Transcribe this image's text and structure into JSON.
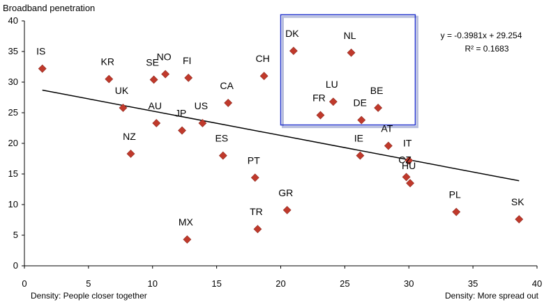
{
  "chart_data": {
    "type": "scatter",
    "ylabel": "Broadband penetration",
    "xlabel_left": "Density: People closer together",
    "xlabel_right": "Density: More spread out",
    "xlim": [
      0,
      40
    ],
    "ylim": [
      0,
      40
    ],
    "x_ticks": [
      0,
      5,
      10,
      15,
      20,
      25,
      30,
      35,
      40
    ],
    "y_ticks": [
      0,
      5,
      10,
      15,
      20,
      25,
      30,
      35,
      40
    ],
    "grid": false,
    "marker_color": "#c0392b",
    "trendline": {
      "slope": -0.3981,
      "intercept": 29.254,
      "equation": "y = -0.3981x + 29.254",
      "r_squared": "R² = 0.1683"
    },
    "highlight_box": {
      "x_range": [
        20,
        30.5
      ],
      "y_range": [
        23,
        41
      ],
      "color": "#2233cc"
    },
    "points": [
      {
        "label": "IS",
        "x": 1.4,
        "y": 32.2
      },
      {
        "label": "KR",
        "x": 6.6,
        "y": 30.5
      },
      {
        "label": "SE",
        "x": 10.1,
        "y": 30.4
      },
      {
        "label": "NO",
        "x": 11.0,
        "y": 31.3
      },
      {
        "label": "FI",
        "x": 12.8,
        "y": 30.7
      },
      {
        "label": "CH",
        "x": 18.7,
        "y": 31.0
      },
      {
        "label": "UK",
        "x": 7.7,
        "y": 25.8
      },
      {
        "label": "AU",
        "x": 10.3,
        "y": 23.3
      },
      {
        "label": "JP",
        "x": 12.3,
        "y": 22.1
      },
      {
        "label": "US",
        "x": 13.9,
        "y": 23.3
      },
      {
        "label": "CA",
        "x": 15.9,
        "y": 26.6
      },
      {
        "label": "NZ",
        "x": 8.3,
        "y": 18.3
      },
      {
        "label": "ES",
        "x": 15.5,
        "y": 18.0
      },
      {
        "label": "PT",
        "x": 18.0,
        "y": 14.4
      },
      {
        "label": "GR",
        "x": 20.5,
        "y": 9.1
      },
      {
        "label": "TR",
        "x": 18.2,
        "y": 6.0
      },
      {
        "label": "MX",
        "x": 12.7,
        "y": 4.3
      },
      {
        "label": "DK",
        "x": 21.0,
        "y": 35.1
      },
      {
        "label": "NL",
        "x": 25.5,
        "y": 34.8
      },
      {
        "label": "LU",
        "x": 24.1,
        "y": 26.8
      },
      {
        "label": "FR",
        "x": 23.1,
        "y": 24.6
      },
      {
        "label": "DE",
        "x": 26.3,
        "y": 23.8
      },
      {
        "label": "BE",
        "x": 27.6,
        "y": 25.8
      },
      {
        "label": "AT",
        "x": 28.4,
        "y": 19.6
      },
      {
        "label": "IE",
        "x": 26.2,
        "y": 18.0
      },
      {
        "label": "IT",
        "x": 30.0,
        "y": 17.2
      },
      {
        "label": "CZ",
        "x": 29.8,
        "y": 14.5
      },
      {
        "label": "HU",
        "x": 30.1,
        "y": 13.5
      },
      {
        "label": "PL",
        "x": 33.7,
        "y": 8.8
      },
      {
        "label": "SK",
        "x": 38.6,
        "y": 7.6
      }
    ]
  }
}
